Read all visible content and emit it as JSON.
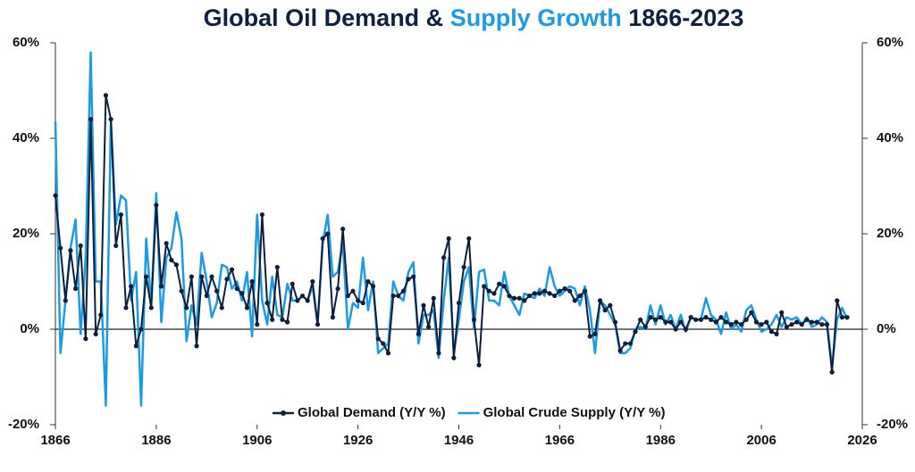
{
  "chart_data": {
    "type": "line",
    "title": "Global Oil Demand &",
    "title_highlight": "Supply Growth",
    "title_suffix": "1866-2023",
    "title_color": "#0d2240",
    "title_highlight_color": "#1a9be6",
    "x": [
      1866,
      1867,
      1868,
      1869,
      1870,
      1871,
      1872,
      1873,
      1874,
      1875,
      1876,
      1877,
      1878,
      1879,
      1880,
      1881,
      1882,
      1883,
      1884,
      1885,
      1886,
      1887,
      1888,
      1889,
      1890,
      1891,
      1892,
      1893,
      1894,
      1895,
      1896,
      1897,
      1898,
      1899,
      1900,
      1901,
      1902,
      1903,
      1904,
      1905,
      1906,
      1907,
      1908,
      1909,
      1910,
      1911,
      1912,
      1913,
      1914,
      1915,
      1916,
      1917,
      1918,
      1919,
      1920,
      1921,
      1922,
      1923,
      1924,
      1925,
      1926,
      1927,
      1928,
      1929,
      1930,
      1931,
      1932,
      1933,
      1934,
      1935,
      1936,
      1937,
      1938,
      1939,
      1940,
      1941,
      1942,
      1943,
      1944,
      1945,
      1946,
      1947,
      1948,
      1949,
      1950,
      1951,
      1952,
      1953,
      1954,
      1955,
      1956,
      1957,
      1958,
      1959,
      1960,
      1961,
      1962,
      1963,
      1964,
      1965,
      1966,
      1967,
      1968,
      1969,
      1970,
      1971,
      1972,
      1973,
      1974,
      1975,
      1976,
      1977,
      1978,
      1979,
      1980,
      1981,
      1982,
      1983,
      1984,
      1985,
      1986,
      1987,
      1988,
      1989,
      1990,
      1991,
      1992,
      1993,
      1994,
      1995,
      1996,
      1997,
      1998,
      1999,
      2000,
      2001,
      2002,
      2003,
      2004,
      2005,
      2006,
      2007,
      2008,
      2009,
      2010,
      2011,
      2012,
      2013,
      2014,
      2015,
      2016,
      2017,
      2018,
      2019,
      2020,
      2021,
      2022,
      2023
    ],
    "series": [
      {
        "name": "Global Demand (Y/Y %)",
        "color": "#0d1f3c",
        "markers": true,
        "values": [
          28,
          17,
          6,
          16.5,
          8.5,
          17.5,
          -2,
          44,
          -1,
          3,
          49,
          44,
          17.5,
          24,
          4.5,
          9,
          -3.5,
          0,
          11,
          4.5,
          26,
          9,
          18,
          14.5,
          13.5,
          8,
          4.5,
          11,
          -3.5,
          11,
          7,
          11,
          8,
          4.5,
          10.5,
          12.5,
          8.5,
          7.5,
          4.5,
          10,
          1,
          24,
          5.5,
          2,
          13,
          2,
          1.5,
          9.5,
          6,
          7,
          6,
          10,
          1,
          19,
          20,
          2.5,
          8.5,
          21,
          7,
          8,
          6,
          5.5,
          10,
          9,
          -2,
          -3,
          -5,
          7,
          7,
          8,
          10.5,
          11,
          -1,
          5,
          0.5,
          6.5,
          -5,
          15,
          19,
          -6,
          5.5,
          13,
          19,
          2,
          -7.5,
          9,
          8,
          7.5,
          9.5,
          9,
          7,
          6.5,
          6.5,
          6,
          7,
          7.5,
          7.5,
          8,
          7.5,
          7,
          8,
          8.5,
          8,
          6,
          7,
          8,
          -1.5,
          -1,
          6,
          4,
          5,
          1.5,
          -4.5,
          -3,
          -3,
          -0.5,
          2,
          0.5,
          2.5,
          2,
          2.5,
          1.5,
          1.5,
          0,
          1.5,
          0,
          2.5,
          2,
          2,
          2.5,
          2,
          1.5,
          2.5,
          1.5,
          1,
          1.5,
          1,
          2,
          3.5,
          1.5,
          1,
          1.5,
          -0.5,
          -1,
          3.5,
          0.5,
          1,
          1.5,
          1,
          2,
          1.5,
          1.5,
          1,
          1,
          -9,
          6,
          2.5,
          2.5
        ]
      },
      {
        "name": "Global Crude Supply (Y/Y %)",
        "color": "#1a9be6",
        "markers": false,
        "values": [
          43.5,
          -5,
          6,
          17,
          23,
          -1,
          15,
          58,
          10,
          10,
          -16,
          44,
          22,
          28,
          27,
          6,
          12,
          -16,
          19,
          5,
          28.5,
          1.5,
          15,
          17,
          24.5,
          19,
          -2.5,
          5,
          1,
          16,
          10,
          2.5,
          5.5,
          13.5,
          13,
          8.5,
          10,
          6,
          12,
          -1.5,
          24,
          6,
          1,
          11,
          3,
          2.5,
          9.5,
          6,
          6,
          7,
          6,
          9,
          1,
          18,
          24,
          11,
          12,
          18,
          0,
          5.5,
          4.5,
          15,
          4,
          10,
          -5,
          -4,
          -3,
          10,
          7,
          6,
          12,
          14,
          -3,
          3,
          3,
          4,
          -6,
          6,
          15,
          -5,
          2,
          10,
          13,
          0,
          12,
          12.5,
          6,
          6,
          5,
          12,
          7,
          5,
          3,
          7.5,
          7,
          6.5,
          8.5,
          7,
          13,
          9,
          7,
          8,
          9,
          8.5,
          5,
          9,
          4,
          -5,
          6,
          5,
          3,
          1,
          -5,
          -5,
          -4,
          0,
          0.5,
          0,
          5,
          1,
          5,
          1,
          3,
          0,
          3,
          -0.5,
          2.5,
          2,
          2,
          6.5,
          3,
          2,
          -1,
          3.5,
          0,
          1,
          -0.5,
          4,
          5,
          2,
          -0.5,
          0,
          1,
          3,
          0.5,
          2.5,
          2,
          2.5,
          1,
          2.5,
          0.5,
          1,
          2.5,
          1.5,
          -8,
          2,
          4.5,
          2
        ]
      }
    ],
    "xlim": [
      1866,
      2026
    ],
    "xticks": [
      1866,
      1886,
      1906,
      1926,
      1946,
      1966,
      1986,
      2006,
      2026
    ],
    "ylim": [
      -20,
      60
    ],
    "yticks": [
      {
        "value": -20,
        "label": "-20%"
      },
      {
        "value": 0,
        "label": "0%"
      },
      {
        "value": 20,
        "label": "20%"
      },
      {
        "value": 40,
        "label": "40%"
      },
      {
        "value": 60,
        "label": "60%"
      }
    ],
    "y2lim": [
      -20,
      60
    ],
    "y2ticks": [
      {
        "value": -20,
        "label": "-20%"
      },
      {
        "value": 0,
        "label": "0%"
      },
      {
        "value": 20,
        "label": "20%"
      },
      {
        "value": 40,
        "label": "40%"
      },
      {
        "value": 60,
        "label": "60%"
      }
    ],
    "grid": false,
    "legend": "bottom"
  }
}
